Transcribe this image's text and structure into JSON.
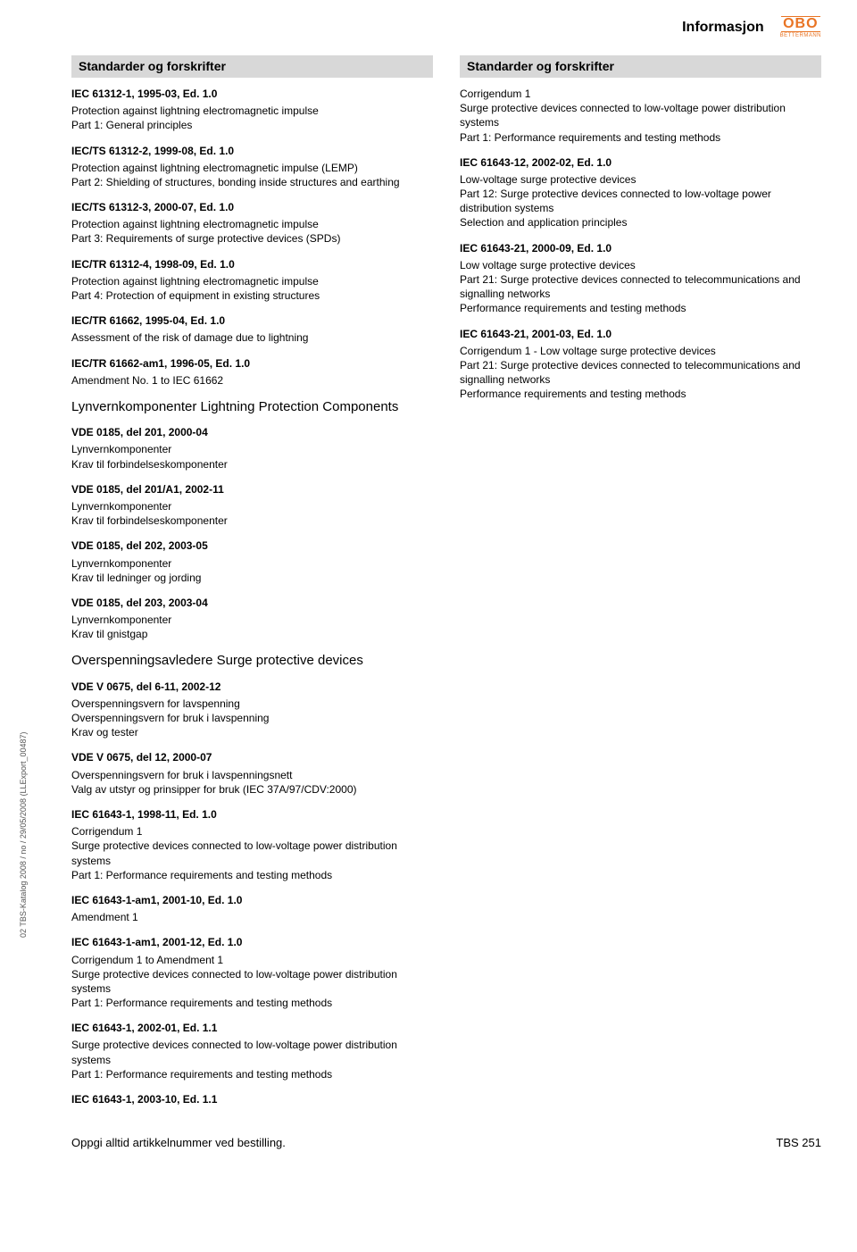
{
  "header": {
    "title": "Informasjon",
    "logo_top": "OBO",
    "logo_bottom": "BETTERMANN"
  },
  "left": {
    "section_header": "Standarder og forskrifter",
    "entries1": [
      {
        "title": "IEC 61312-1, 1995-03, Ed. 1.0",
        "body": "Protection against lightning electromagnetic impulse\nPart 1: General principles"
      },
      {
        "title": "IEC/TS 61312-2, 1999-08, Ed. 1.0",
        "body": "Protection against lightning electromagnetic impulse (LEMP)\nPart 2: Shielding of structures, bonding inside structures and earthing"
      },
      {
        "title": "IEC/TS 61312-3, 2000-07, Ed. 1.0",
        "body": "Protection against lightning electromagnetic impulse\nPart 3: Requirements of surge protective devices (SPDs)"
      },
      {
        "title": "IEC/TR 61312-4, 1998-09, Ed. 1.0",
        "body": "Protection against lightning electromagnetic impulse\nPart 4: Protection of equipment in existing structures"
      },
      {
        "title": "IEC/TR 61662, 1995-04, Ed. 1.0",
        "body": "Assessment of the risk of damage due to lightning"
      },
      {
        "title": "IEC/TR 61662-am1, 1996-05, Ed. 1.0",
        "body": "Amendment No. 1 to IEC 61662"
      }
    ],
    "sub1_title": "Lynvernkomponenter Lightning Protection Components",
    "entries2": [
      {
        "title": "VDE 0185, del 201, 2000-04",
        "body": "Lynvernkomponenter\nKrav til forbindelseskomponenter"
      },
      {
        "title": "VDE 0185, del 201/A1, 2002-11",
        "body": "Lynvernkomponenter\nKrav til forbindelseskomponenter"
      },
      {
        "title": "VDE 0185, del 202, 2003-05",
        "body": "Lynvernkomponenter\nKrav til ledninger og jording"
      },
      {
        "title": "VDE 0185, del 203, 2003-04",
        "body": "Lynvernkomponenter\nKrav til gnistgap"
      }
    ],
    "sub2_title": "Overspenningsavledere Surge protective devices",
    "entries3": [
      {
        "title": "VDE V 0675, del 6-11, 2002-12",
        "body": "Overspenningsvern for lavspenning\nOverspenningsvern for bruk i lavspenning\nKrav og tester"
      },
      {
        "title": "VDE V 0675, del 12, 2000-07",
        "body": "Overspenningsvern for bruk i lavspenningsnett\nValg av utstyr og prinsipper for bruk (IEC 37A/97/CDV:2000)"
      },
      {
        "title": "IEC 61643-1, 1998-11, Ed. 1.0",
        "body": "Corrigendum 1\nSurge protective devices connected to low-voltage power distribution systems\nPart 1: Performance requirements and testing methods"
      },
      {
        "title": "IEC 61643-1-am1, 2001-10, Ed. 1.0",
        "body": "Amendment 1"
      },
      {
        "title": "IEC 61643-1-am1, 2001-12, Ed. 1.0",
        "body": "Corrigendum 1 to Amendment 1\nSurge protective devices connected to low-voltage power distribution systems\nPart 1: Performance requirements and testing methods"
      },
      {
        "title": "IEC 61643-1, 2002-01, Ed. 1.1",
        "body": "Surge protective devices connected to low-voltage power distribution systems\nPart 1: Performance requirements and testing methods"
      },
      {
        "title": "IEC 61643-1, 2003-10, Ed. 1.1",
        "body": ""
      }
    ]
  },
  "right": {
    "section_header": "Standarder og forskrifter",
    "entries": [
      {
        "title": "",
        "body": "Corrigendum 1\nSurge protective devices connected to low-voltage power distribution systems\nPart 1: Performance requirements and testing methods"
      },
      {
        "title": "IEC 61643-12, 2002-02, Ed. 1.0",
        "body": "Low-voltage surge protective devices\nPart 12: Surge protective devices connected to low-voltage power distribution systems\nSelection and application principles"
      },
      {
        "title": "IEC 61643-21, 2000-09, Ed. 1.0",
        "body": "Low voltage surge protective devices\nPart 21: Surge protective devices connected to telecommunications and signalling networks\nPerformance requirements and testing methods"
      },
      {
        "title": "IEC 61643-21, 2001-03, Ed. 1.0",
        "body": "Corrigendum 1 - Low voltage surge protective devices\nPart 21: Surge protective devices connected to telecommunications and signalling networks\nPerformance requirements and testing methods"
      }
    ]
  },
  "side_text": "02 TBS-Katalog 2008 / no / 29/05/2008 (LLExport_00487)",
  "footer": {
    "left": "Oppgi alltid artikkelnummer ved bestilling.",
    "right_prefix": "TBS",
    "right_page": "251"
  }
}
